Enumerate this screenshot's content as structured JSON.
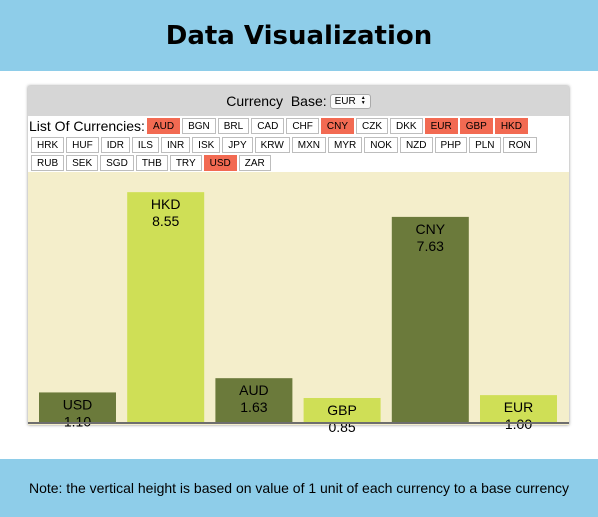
{
  "header": {
    "title": "Data Visualization"
  },
  "controls": {
    "base_label": "Currency  Base:",
    "base_value": "EUR",
    "list_label": "List Of Currencies:"
  },
  "currencies": [
    {
      "code": "AUD",
      "selected": true
    },
    {
      "code": "BGN",
      "selected": false
    },
    {
      "code": "BRL",
      "selected": false
    },
    {
      "code": "CAD",
      "selected": false
    },
    {
      "code": "CHF",
      "selected": false
    },
    {
      "code": "CNY",
      "selected": true
    },
    {
      "code": "CZK",
      "selected": false
    },
    {
      "code": "DKK",
      "selected": false
    },
    {
      "code": "EUR",
      "selected": true
    },
    {
      "code": "GBP",
      "selected": true
    },
    {
      "code": "HKD",
      "selected": true
    },
    {
      "code": "HRK",
      "selected": false
    },
    {
      "code": "HUF",
      "selected": false
    },
    {
      "code": "IDR",
      "selected": false
    },
    {
      "code": "ILS",
      "selected": false
    },
    {
      "code": "INR",
      "selected": false
    },
    {
      "code": "ISK",
      "selected": false
    },
    {
      "code": "JPY",
      "selected": false
    },
    {
      "code": "KRW",
      "selected": false
    },
    {
      "code": "MXN",
      "selected": false
    },
    {
      "code": "MYR",
      "selected": false
    },
    {
      "code": "NOK",
      "selected": false
    },
    {
      "code": "NZD",
      "selected": false
    },
    {
      "code": "PHP",
      "selected": false
    },
    {
      "code": "PLN",
      "selected": false
    },
    {
      "code": "RON",
      "selected": false
    },
    {
      "code": "RUB",
      "selected": false
    },
    {
      "code": "SEK",
      "selected": false
    },
    {
      "code": "SGD",
      "selected": false
    },
    {
      "code": "THB",
      "selected": false
    },
    {
      "code": "TRY",
      "selected": false
    },
    {
      "code": "USD",
      "selected": true
    },
    {
      "code": "ZAR",
      "selected": false
    }
  ],
  "colors": {
    "selected_chip": "#f26a52",
    "bar_dark": "#6b7a3b",
    "bar_light": "#cfdf56",
    "plot_background": "#f4eecb",
    "header_background": "#8ecde9"
  },
  "chart_data": {
    "type": "bar",
    "categories": [
      "USD",
      "HKD",
      "AUD",
      "GBP",
      "CNY",
      "EUR"
    ],
    "values": [
      1.1,
      8.55,
      1.63,
      0.85,
      7.63,
      1.0
    ],
    "value_labels": [
      "1.10",
      "8.55",
      "1.63",
      "0.85",
      "7.63",
      "1.00"
    ],
    "bar_colors": [
      "#6b7a3b",
      "#cfdf56",
      "#6b7a3b",
      "#cfdf56",
      "#6b7a3b",
      "#cfdf56"
    ],
    "title": "",
    "xlabel": "",
    "ylabel": "",
    "ylim": [
      0,
      9.3
    ],
    "grid": false,
    "legend": false
  },
  "note": {
    "text": "Note: the vertical height is based on value of 1 unit of each currency to a base currency"
  }
}
